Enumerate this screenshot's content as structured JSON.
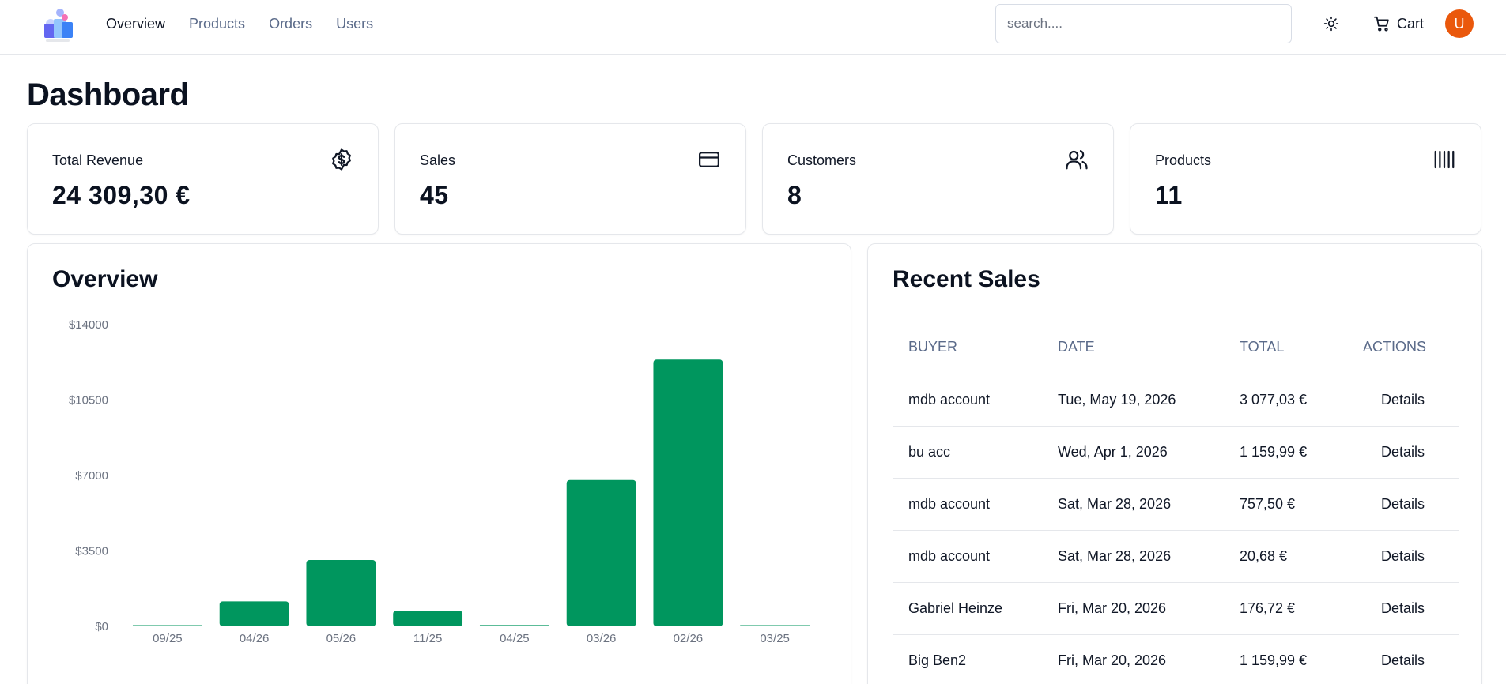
{
  "nav": {
    "items": [
      {
        "label": "Overview",
        "active": true
      },
      {
        "label": "Products",
        "active": false
      },
      {
        "label": "Orders",
        "active": false
      },
      {
        "label": "Users",
        "active": false
      }
    ]
  },
  "header": {
    "search_placeholder": "search....",
    "theme_icon": "sun-icon",
    "cart_label": "Cart",
    "cart_icon": "cart-icon",
    "avatar_initial": "U",
    "avatar_color": "#ea580c"
  },
  "page": {
    "title": "Dashboard"
  },
  "stats": [
    {
      "label": "Total Revenue",
      "value": "24 309,30 €",
      "icon": "dollar-badge-icon"
    },
    {
      "label": "Sales",
      "value": "45",
      "icon": "credit-card-icon"
    },
    {
      "label": "Customers",
      "value": "8",
      "icon": "users-icon"
    },
    {
      "label": "Products",
      "value": "11",
      "icon": "barcode-icon"
    }
  ],
  "overview": {
    "title": "Overview"
  },
  "chart_data": {
    "type": "bar",
    "categories": [
      "09/25",
      "04/26",
      "05/26",
      "11/25",
      "04/25",
      "03/26",
      "02/26",
      "03/25"
    ],
    "values": [
      20,
      1160,
      3080,
      730,
      60,
      6790,
      12380,
      20
    ],
    "yticks": [
      "$0",
      "$3500",
      "$7000",
      "$10500",
      "$14000"
    ],
    "ytick_values": [
      0,
      3500,
      7000,
      10500,
      14000
    ],
    "ylim": [
      0,
      14000
    ],
    "bar_color": "#00965e",
    "grid": false
  },
  "recent_sales": {
    "title": "Recent Sales",
    "columns": [
      "BUYER",
      "DATE",
      "TOTAL",
      "ACTIONS"
    ],
    "rows": [
      {
        "buyer": "mdb account",
        "date": "Tue, May 19, 2026",
        "total": "3 077,03 €",
        "action": "Details"
      },
      {
        "buyer": "bu acc",
        "date": "Wed, Apr 1, 2026",
        "total": "1 159,99 €",
        "action": "Details"
      },
      {
        "buyer": "mdb account",
        "date": "Sat, Mar 28, 2026",
        "total": "757,50 €",
        "action": "Details"
      },
      {
        "buyer": "mdb account",
        "date": "Sat, Mar 28, 2026",
        "total": "20,68 €",
        "action": "Details"
      },
      {
        "buyer": "Gabriel Heinze",
        "date": "Fri, Mar 20, 2026",
        "total": "176,72 €",
        "action": "Details"
      },
      {
        "buyer": "Big Ben2",
        "date": "Fri, Mar 20, 2026",
        "total": "1 159,99 €",
        "action": "Details"
      }
    ]
  }
}
